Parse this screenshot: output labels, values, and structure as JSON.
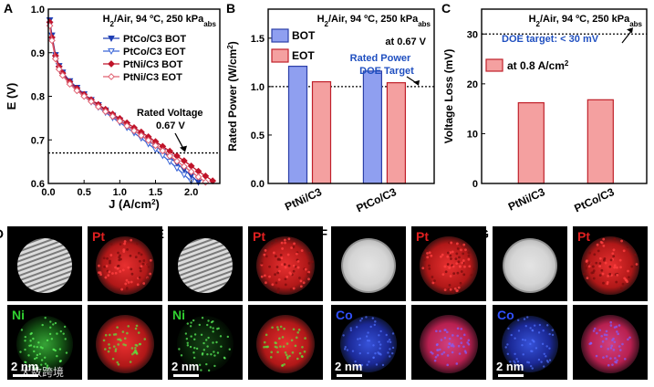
{
  "chart_data": [
    {
      "panel": "A",
      "type": "line",
      "title": "H2/Air, 94 °C, 250 kPaabs",
      "title_parts": {
        "h": "H",
        "sub2": "2",
        "rest": "/Air, 94 ºC, 250 kPa",
        "sub": "abs"
      },
      "xlabel": "J (A/cm2)",
      "xlabel_parts": {
        "main": "J (A/cm",
        "sup": "2",
        "end": ")"
      },
      "ylabel": "E (V)",
      "xlim": [
        0,
        2.4
      ],
      "ylim": [
        0.6,
        1.0
      ],
      "xticks": [
        "0.0",
        "0.5",
        "1.0",
        "1.5",
        "2.0"
      ],
      "yticks": [
        "0.6",
        "0.7",
        "0.8",
        "0.9",
        "1.0"
      ],
      "annotation": {
        "line1": "Rated Voltage",
        "line2": "0.67 V",
        "y": 0.67
      },
      "series": [
        {
          "name": "PtCo/C3 BOT",
          "color": "#1f3fb4",
          "marker": "triangle-down",
          "filled": true,
          "x": [
            0.02,
            0.05,
            0.1,
            0.15,
            0.2,
            0.3,
            0.4,
            0.5,
            0.6,
            0.7,
            0.8,
            0.9,
            1.0,
            1.1,
            1.2,
            1.3,
            1.4,
            1.5,
            1.6,
            1.7,
            1.8,
            1.9,
            2.0,
            2.1
          ],
          "y": [
            0.975,
            0.94,
            0.895,
            0.87,
            0.855,
            0.835,
            0.82,
            0.805,
            0.792,
            0.78,
            0.768,
            0.756,
            0.745,
            0.734,
            0.722,
            0.71,
            0.698,
            0.686,
            0.673,
            0.66,
            0.646,
            0.632,
            0.618,
            0.603
          ]
        },
        {
          "name": "PtCo/C3 EOT",
          "color": "#3a66d8",
          "marker": "triangle-down",
          "filled": false,
          "x": [
            0.02,
            0.05,
            0.1,
            0.15,
            0.2,
            0.3,
            0.4,
            0.5,
            0.6,
            0.7,
            0.8,
            0.9,
            1.0,
            1.1,
            1.2,
            1.3,
            1.4,
            1.5,
            1.6,
            1.7,
            1.8,
            1.9,
            2.0
          ],
          "y": [
            0.965,
            0.93,
            0.888,
            0.864,
            0.85,
            0.83,
            0.815,
            0.8,
            0.787,
            0.775,
            0.763,
            0.751,
            0.74,
            0.728,
            0.716,
            0.704,
            0.691,
            0.678,
            0.664,
            0.65,
            0.635,
            0.62,
            0.605
          ]
        },
        {
          "name": "PtNi/C3 BOT",
          "color": "#c0142a",
          "marker": "diamond",
          "filled": true,
          "x": [
            0.02,
            0.05,
            0.1,
            0.15,
            0.2,
            0.3,
            0.4,
            0.5,
            0.6,
            0.7,
            0.8,
            0.9,
            1.0,
            1.1,
            1.2,
            1.3,
            1.4,
            1.5,
            1.6,
            1.7,
            1.8,
            1.9,
            2.0,
            2.1,
            2.2,
            2.3
          ],
          "y": [
            0.97,
            0.935,
            0.893,
            0.868,
            0.853,
            0.833,
            0.818,
            0.804,
            0.792,
            0.781,
            0.77,
            0.759,
            0.749,
            0.739,
            0.728,
            0.718,
            0.707,
            0.696,
            0.685,
            0.674,
            0.663,
            0.652,
            0.64,
            0.628,
            0.617,
            0.606
          ]
        },
        {
          "name": "PtNi/C3 EOT",
          "color": "#e06070",
          "marker": "diamond",
          "filled": false,
          "x": [
            0.02,
            0.05,
            0.1,
            0.15,
            0.2,
            0.3,
            0.4,
            0.5,
            0.6,
            0.7,
            0.8,
            0.9,
            1.0,
            1.1,
            1.2,
            1.3,
            1.4,
            1.5,
            1.6,
            1.7,
            1.8,
            1.9,
            2.0,
            2.1,
            2.2
          ],
          "y": [
            0.962,
            0.928,
            0.886,
            0.862,
            0.848,
            0.828,
            0.813,
            0.8,
            0.788,
            0.776,
            0.765,
            0.754,
            0.743,
            0.732,
            0.721,
            0.71,
            0.699,
            0.687,
            0.675,
            0.663,
            0.651,
            0.639,
            0.627,
            0.615,
            0.603
          ]
        }
      ]
    },
    {
      "panel": "B",
      "type": "bar",
      "title_parts": {
        "h": "H",
        "sub2": "2",
        "rest": "/Air, 94 ºC, 250 kPa",
        "sub": "abs"
      },
      "subtitle": "at 0.67 V",
      "ylabel": "Rated Power (W/cm2)",
      "ylabel_parts": {
        "main": "Rated Power (W/cm",
        "sup": "2",
        "end": ")"
      },
      "ylim": [
        0,
        1.8
      ],
      "yticks": [
        "0.0",
        "0.5",
        "1.0",
        "1.5"
      ],
      "categories": [
        "PtNi/C3",
        "PtCo/C3"
      ],
      "series": [
        {
          "name": "BOT",
          "color": "#8f9ff0",
          "edge": "#2c3fa8",
          "values": [
            1.21,
            1.16
          ]
        },
        {
          "name": "EOT",
          "color": "#f4a0a0",
          "edge": "#c0202a",
          "values": [
            1.05,
            1.04
          ]
        }
      ],
      "target": {
        "value": 1.0,
        "line1": "Rated Power",
        "line2": "DOE Target",
        "color": "#1f4fc0"
      }
    },
    {
      "panel": "C",
      "type": "bar",
      "title_parts": {
        "h": "H",
        "sub2": "2",
        "rest": "/Air, 94 ºC, 250 kPa",
        "sub": "abs"
      },
      "ylabel": "Voltage Loss (mV)",
      "ylim": [
        0,
        35
      ],
      "yticks": [
        "0",
        "10",
        "20",
        "30"
      ],
      "categories": [
        "PtNi/C3",
        "PtCo/C3"
      ],
      "series": [
        {
          "name": "at 0.8 A/cm2",
          "label_parts": {
            "main": "at 0.8 A/cm",
            "sup": "2"
          },
          "color": "#f4a0a0",
          "edge": "#c0202a",
          "values": [
            16.2,
            16.8
          ]
        }
      ],
      "target": {
        "value": 30,
        "label": "DOE target: < 30 mV",
        "color": "#1f4fc0"
      }
    }
  ],
  "micrographs": [
    {
      "panel": "D",
      "labels": [
        "Pt",
        "Ni"
      ],
      "colors": [
        "#e02020",
        "#30d030"
      ],
      "scale": "2 nm",
      "second": "Ni",
      "type": "ni"
    },
    {
      "panel": "E",
      "labels": [
        "Pt",
        "Ni"
      ],
      "colors": [
        "#e02020",
        "#30d030"
      ],
      "scale": "2 nm",
      "second": "Ni",
      "type": "ni"
    },
    {
      "panel": "F",
      "labels": [
        "Pt",
        "Co"
      ],
      "colors": [
        "#e02020",
        "#3050ff"
      ],
      "scale": "2 nm",
      "second": "Co",
      "type": "co"
    },
    {
      "panel": "G",
      "labels": [
        "Pt",
        "Co"
      ],
      "colors": [
        "#e02020",
        "#3050ff"
      ],
      "scale": "2 nm",
      "second": "Co",
      "type": "co"
    }
  ],
  "watermark": "大数跨境"
}
